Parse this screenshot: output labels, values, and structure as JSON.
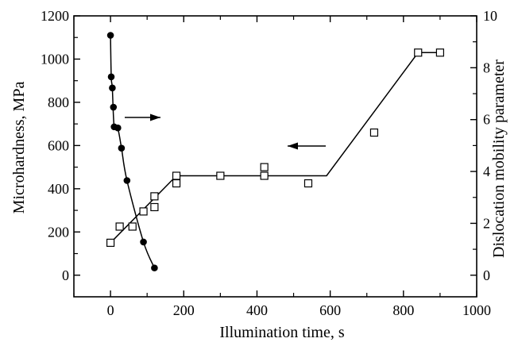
{
  "chart_data": {
    "type": "scatter",
    "title": "",
    "xlabel": "Illumination time, s",
    "ylabel_left": "Microhardness, MPa",
    "ylabel_right": "Dislocation mobility parameter",
    "xlim": [
      -100,
      1000
    ],
    "ylim_left": [
      -100,
      1200
    ],
    "ylim_right": [
      -0.833,
      10
    ],
    "x_ticks": [
      0,
      200,
      400,
      600,
      800,
      1000
    ],
    "y_left_ticks": [
      0,
      200,
      400,
      600,
      800,
      1000,
      1200
    ],
    "y_right_ticks": [
      0,
      2,
      4,
      6,
      8,
      10
    ],
    "grid": false,
    "legend": "none",
    "series": [
      {
        "axis": "left",
        "marker": "open-square",
        "x": [
          0,
          25,
          60,
          90,
          120,
          120,
          180,
          180,
          300,
          420,
          420,
          540,
          720,
          840,
          900
        ],
        "y": [
          150,
          225,
          225,
          295,
          315,
          365,
          425,
          460,
          460,
          460,
          500,
          425,
          660,
          1030,
          1030
        ]
      },
      {
        "axis": "right",
        "marker": "filled-circle",
        "x": [
          0,
          2,
          5,
          8,
          10,
          20,
          30,
          45,
          90,
          120
        ],
        "y": [
          9.25,
          7.65,
          7.22,
          6.48,
          5.72,
          5.68,
          4.9,
          3.65,
          1.28,
          0.28
        ]
      }
    ],
    "lines": [
      {
        "axis": "left",
        "style": "straight",
        "x": [
          0,
          180,
          590,
          840,
          900
        ],
        "y": [
          150,
          460,
          460,
          1030,
          1030
        ]
      },
      {
        "axis": "right",
        "style": "smooth",
        "x": [
          0,
          2,
          5,
          10,
          20,
          30,
          45,
          90,
          120
        ],
        "y": [
          9.25,
          7.65,
          7.2,
          5.72,
          5.65,
          4.9,
          3.65,
          1.28,
          0.28
        ]
      }
    ],
    "annotations": [
      {
        "type": "arrow",
        "direction": "right",
        "meaning": "circles refer to right axis"
      },
      {
        "type": "arrow",
        "direction": "left",
        "meaning": "squares refer to left axis"
      }
    ]
  }
}
